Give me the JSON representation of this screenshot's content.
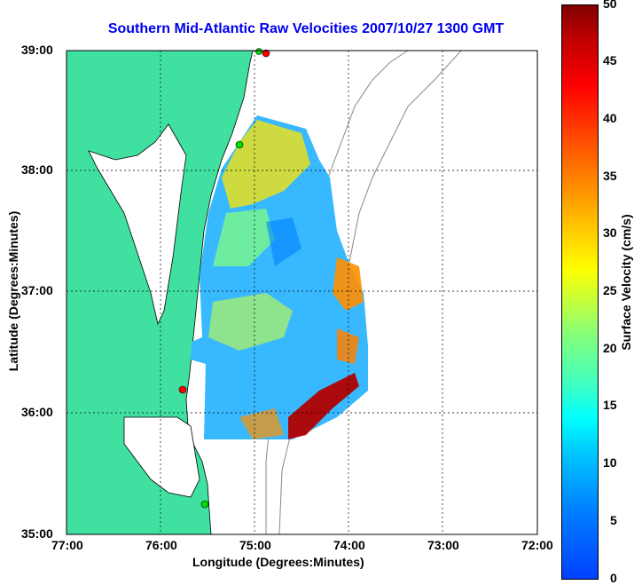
{
  "title": "Southern Mid-Atlantic Raw Velocities 2007/10/27 1300 GMT",
  "xaxis": {
    "label": "Longitude (Degrees:Minutes)",
    "ticks": [
      "77:00",
      "76:00",
      "75:00",
      "74:00",
      "73:00",
      "72:00"
    ]
  },
  "yaxis": {
    "label": "Latitude (Degrees:Minutes)",
    "ticks": [
      "39:00",
      "38:00",
      "37:00",
      "36:00",
      "35:00"
    ]
  },
  "colorbar": {
    "label": "Surface Velocity (cm/s)",
    "ticks": [
      "50",
      "45",
      "40",
      "35",
      "30",
      "25",
      "20",
      "15",
      "10",
      "5",
      "0"
    ],
    "range": [
      0,
      50
    ]
  },
  "colors": {
    "land": "#40e0a0",
    "title": "#0000ee",
    "station_red": "#ff0000",
    "station_green": "#00dd00"
  }
}
